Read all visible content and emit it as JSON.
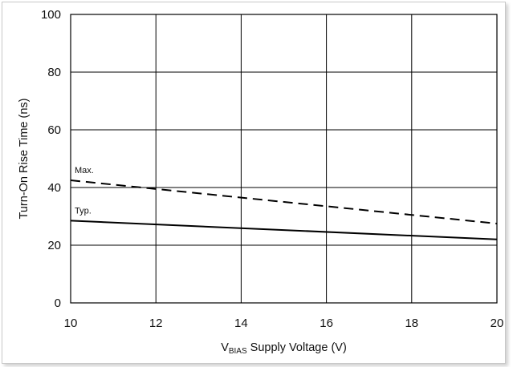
{
  "chart_data": {
    "type": "line",
    "xlabel_main": "V",
    "xlabel_sub": "BIAS",
    "xlabel_rest": " Supply Voltage (V)",
    "ylabel": "Turn-On Rise Time (ns)",
    "xlim": [
      10,
      20
    ],
    "ylim": [
      0,
      100
    ],
    "x_ticks": [
      10,
      12,
      14,
      16,
      18,
      20
    ],
    "y_ticks": [
      0,
      20,
      40,
      60,
      80,
      100
    ],
    "grid": true,
    "series": [
      {
        "name": "Max.",
        "style": "dashed",
        "color": "#000000",
        "x": [
          10,
          20
        ],
        "y": [
          42.5,
          27.5
        ]
      },
      {
        "name": "Typ.",
        "style": "solid",
        "color": "#000000",
        "x": [
          10,
          20
        ],
        "y": [
          28.5,
          22
        ]
      }
    ]
  }
}
